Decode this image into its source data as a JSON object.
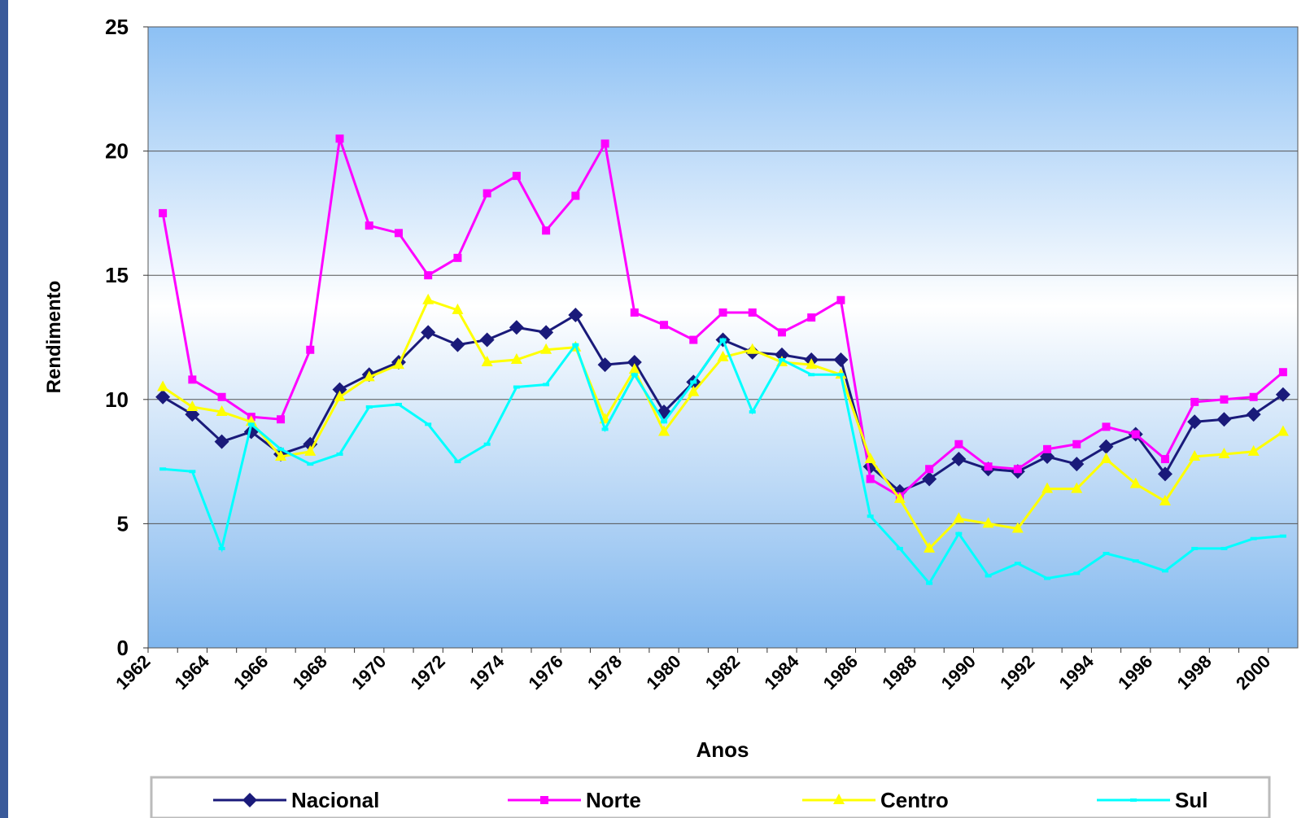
{
  "chart_data": {
    "type": "line",
    "x_label": "Anos",
    "y_label": "Rendimento",
    "categories": [
      "1962",
      null,
      "1964",
      null,
      "1966",
      null,
      "1968",
      null,
      "1970",
      null,
      "1972",
      null,
      "1974",
      null,
      "1976",
      null,
      "1978",
      null,
      "1980",
      null,
      "1982",
      null,
      "1984",
      null,
      "1986",
      null,
      "1988",
      null,
      "1990",
      null,
      "1992",
      null,
      "1994",
      null,
      "1996",
      null,
      "1998",
      null,
      "2000"
    ],
    "ylim": [
      0,
      25
    ],
    "yticks": [
      0,
      5,
      10,
      15,
      20,
      25
    ],
    "grid": true,
    "series": [
      {
        "name": "Nacional",
        "color": "#1a1a7a",
        "marker": "diamond",
        "values": [
          10.1,
          9.4,
          8.3,
          8.7,
          7.8,
          8.2,
          10.4,
          11.0,
          11.5,
          12.7,
          12.2,
          12.4,
          12.9,
          12.7,
          13.4,
          11.4,
          11.5,
          9.5,
          10.7,
          12.4,
          11.9,
          11.8,
          11.6,
          11.6,
          7.3,
          6.3,
          6.8,
          7.6,
          7.2,
          7.1,
          7.7,
          7.4,
          8.1,
          8.6,
          7.0,
          9.1,
          9.2,
          9.4,
          10.2
        ]
      },
      {
        "name": "Norte",
        "color": "#ff00ff",
        "marker": "square",
        "values": [
          17.5,
          10.8,
          10.1,
          9.3,
          9.2,
          12.0,
          20.5,
          17.0,
          16.7,
          15.0,
          15.7,
          18.3,
          19.0,
          16.8,
          18.2,
          20.3,
          13.5,
          13.0,
          12.4,
          13.5,
          13.5,
          12.7,
          13.3,
          14.0,
          6.8,
          6.1,
          7.2,
          8.2,
          7.3,
          7.2,
          8.0,
          8.2,
          8.9,
          8.6,
          7.6,
          9.9,
          10.0,
          10.1,
          11.1
        ]
      },
      {
        "name": "Centro",
        "color": "#ffff00",
        "marker": "triangle",
        "values": [
          10.5,
          9.7,
          9.5,
          9.1,
          7.7,
          7.9,
          10.1,
          10.9,
          11.4,
          14.0,
          13.6,
          11.5,
          11.6,
          12.0,
          12.1,
          9.2,
          11.2,
          8.7,
          10.3,
          11.7,
          12.0,
          11.5,
          11.4,
          11.0,
          7.6,
          6.0,
          4.0,
          5.2,
          5.0,
          4.8,
          6.4,
          6.4,
          7.6,
          6.6,
          5.9,
          7.7,
          7.8,
          7.9,
          8.7
        ]
      },
      {
        "name": "Sul",
        "color": "#00ffff",
        "marker": "dash",
        "values": [
          7.2,
          7.1,
          4.0,
          9.0,
          8.0,
          7.4,
          7.8,
          9.7,
          9.8,
          9.0,
          7.5,
          8.2,
          10.5,
          10.6,
          12.2,
          8.8,
          11.0,
          9.1,
          10.7,
          12.4,
          9.5,
          11.6,
          11.0,
          11.0,
          5.3,
          4.0,
          2.6,
          4.6,
          2.9,
          3.4,
          2.8,
          3.0,
          3.8,
          3.5,
          3.1,
          4.0,
          4.0,
          4.4,
          4.5
        ]
      }
    ]
  }
}
